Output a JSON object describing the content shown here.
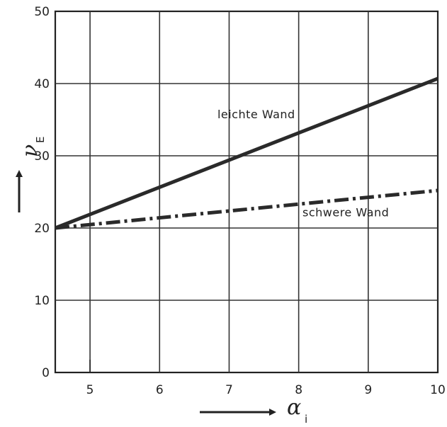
{
  "chart_data": {
    "type": "line",
    "title": "",
    "xlabel": "αi",
    "ylabel": "νE",
    "xlabel_parts": {
      "symbol": "α",
      "sub": "i"
    },
    "ylabel_parts": {
      "symbol": "ν",
      "sub": "E"
    },
    "xlim": [
      4.5,
      10
    ],
    "ylim": [
      0,
      50
    ],
    "x_ticks": [
      5,
      6,
      7,
      8,
      9,
      10
    ],
    "y_ticks": [
      0,
      10,
      20,
      30,
      40,
      50
    ],
    "grid": true,
    "series": [
      {
        "name": "leichte Wand",
        "style": "solid",
        "color": "#2a2a2a",
        "x": [
          4.5,
          10
        ],
        "y": [
          20,
          40.7
        ]
      },
      {
        "name": "schwere Wand",
        "style": "dash-dot",
        "color": "#2a2a2a",
        "x": [
          4.5,
          10
        ],
        "y": [
          20,
          25.2
        ]
      }
    ]
  }
}
